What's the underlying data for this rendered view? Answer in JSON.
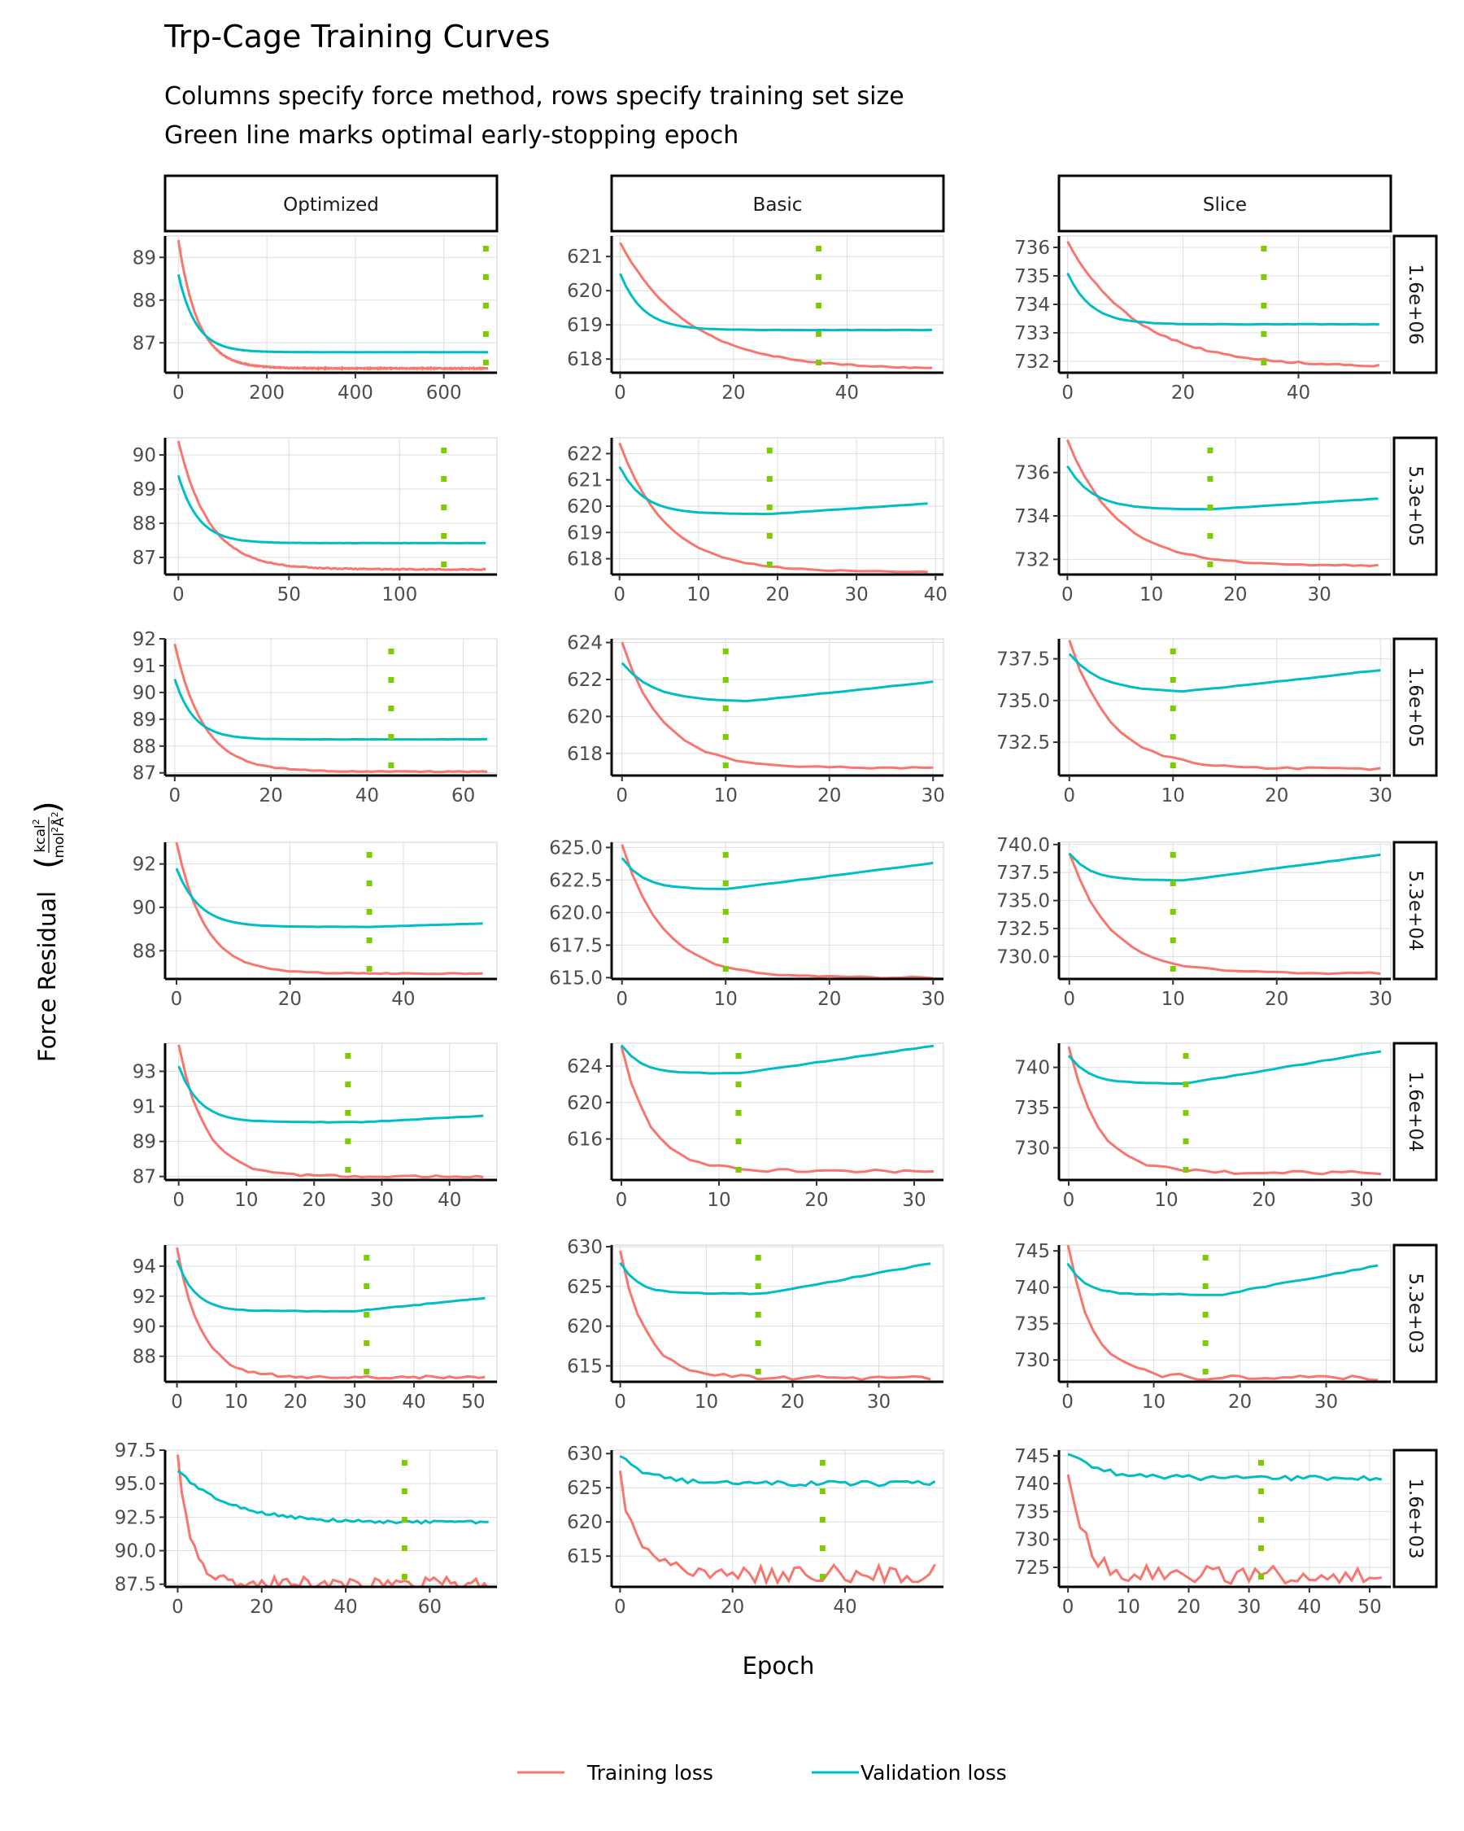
{
  "title": "Trp-Cage Training Curves",
  "subtitle_lines": [
    "Columns specify force method, rows specify training set size",
    "Green line marks optimal early-stopping epoch"
  ],
  "xlabel": "Epoch",
  "ylabel": "Force Residual",
  "ylabel_unit": {
    "num": "kcal",
    "num_sup": "2",
    "den": "mol",
    "den_sup1": "2",
    "den_unit": "Å",
    "den_sup2": "2"
  },
  "legend": {
    "items": [
      {
        "label": "Training loss",
        "color": "#F8766D"
      },
      {
        "label": "Validation loss",
        "color": "#00BFC4"
      }
    ]
  },
  "colors": {
    "train": "#F8766D",
    "val": "#00BFC4",
    "stop": "#7CCD00",
    "grid": "#DEDEDE",
    "strip_bg": "#FFFFFF",
    "strip_border": "#000000"
  },
  "chart_data": {
    "type": "line",
    "facet_columns": [
      "Optimized",
      "Basic",
      "Slice"
    ],
    "facet_rows": [
      "1.6e+06",
      "5.3e+05",
      "1.6e+05",
      "5.3e+04",
      "1.6e+04",
      "5.3e+03",
      "1.6e+03"
    ],
    "series_names": [
      "Training loss",
      "Validation loss"
    ],
    "panels": [
      {
        "row": 0,
        "col": 0,
        "xlim": [
          -30,
          720
        ],
        "xticks": [
          0,
          200,
          400,
          600
        ],
        "ylim": [
          86.3,
          89.5
        ],
        "yticks": [
          87,
          88,
          89
        ],
        "ytick_labels": [
          "87",
          "88",
          "89"
        ],
        "stop_epoch": 695,
        "n_epochs": 700,
        "noise": 0.01,
        "train": {
          "start": 89.4,
          "end": 86.4,
          "tau": 45,
          "slope": 0.0007
        },
        "val": {
          "start": 88.6,
          "end": 86.78,
          "tau": 40,
          "slope": 0.0
        }
      },
      {
        "row": 0,
        "col": 1,
        "xlim": [
          -1.5,
          57
        ],
        "xticks": [
          0,
          20,
          40
        ],
        "ylim": [
          617.6,
          621.6
        ],
        "yticks": [
          618,
          619,
          620,
          621
        ],
        "ytick_labels": [
          "618",
          "619",
          "620",
          "621"
        ],
        "stop_epoch": 35,
        "n_epochs": 55,
        "noise": 0.015,
        "train": {
          "start": 621.4,
          "end": 617.7,
          "tau": 12,
          "slope": 0.03
        },
        "val": {
          "start": 620.5,
          "end": 618.85,
          "tau": 4,
          "slope": 0.0
        }
      },
      {
        "row": 0,
        "col": 2,
        "xlim": [
          -1.5,
          56
        ],
        "xticks": [
          0,
          20,
          40
        ],
        "ylim": [
          731.6,
          736.4
        ],
        "yticks": [
          732,
          733,
          734,
          735,
          736
        ],
        "ytick_labels": [
          "732",
          "733",
          "734",
          "735",
          "736"
        ],
        "stop_epoch": 34,
        "n_epochs": 54,
        "noise": 0.03,
        "train": {
          "start": 736.2,
          "end": 731.8,
          "tau": 12,
          "slope": 0.035
        },
        "val": {
          "start": 735.1,
          "end": 733.3,
          "tau": 4,
          "slope": 0.002
        }
      },
      {
        "row": 1,
        "col": 0,
        "xlim": [
          -6,
          144
        ],
        "xticks": [
          0,
          50,
          100
        ],
        "ylim": [
          86.5,
          90.5
        ],
        "yticks": [
          87,
          88,
          89,
          90
        ],
        "ytick_labels": [
          "87",
          "88",
          "89",
          "90"
        ],
        "stop_epoch": 120,
        "n_epochs": 139,
        "noise": 0.015,
        "train": {
          "start": 90.4,
          "end": 86.65,
          "tau": 14,
          "slope": 0.004
        },
        "val": {
          "start": 89.4,
          "end": 87.42,
          "tau": 9,
          "slope": 0.0
        }
      },
      {
        "row": 1,
        "col": 1,
        "xlim": [
          -1,
          41
        ],
        "xticks": [
          0,
          10,
          20,
          30,
          40
        ],
        "ylim": [
          617.4,
          622.6
        ],
        "yticks": [
          618,
          619,
          620,
          621,
          622
        ],
        "ytick_labels": [
          "618",
          "619",
          "620",
          "621",
          "622"
        ],
        "stop_epoch": 19,
        "n_epochs": 39,
        "noise": 0.02,
        "train": {
          "start": 622.4,
          "end": 617.5,
          "tau": 6,
          "slope": 0.05
        },
        "val": {
          "start": 621.5,
          "end": 619.7,
          "tau": 3,
          "slope": 0.02,
          "min_at": 19
        }
      },
      {
        "row": 1,
        "col": 2,
        "xlim": [
          -1,
          38.5
        ],
        "xticks": [
          0,
          10,
          20,
          30
        ],
        "ylim": [
          731.3,
          737.6
        ],
        "yticks": [
          732,
          734,
          736
        ],
        "ytick_labels": [
          "732",
          "734",
          "736"
        ],
        "stop_epoch": 17,
        "n_epochs": 37,
        "noise": 0.03,
        "train": {
          "start": 737.5,
          "end": 731.7,
          "tau": 6,
          "slope": 0.07
        },
        "val": {
          "start": 736.3,
          "end": 734.3,
          "tau": 3,
          "slope": 0.025,
          "min_at": 17
        }
      },
      {
        "row": 2,
        "col": 0,
        "xlim": [
          -2,
          67
        ],
        "xticks": [
          0,
          20,
          40,
          60
        ],
        "ylim": [
          86.9,
          92.0
        ],
        "yticks": [
          87,
          88,
          89,
          90,
          91,
          92
        ],
        "ytick_labels": [
          "87",
          "88",
          "89",
          "90",
          "91",
          "92"
        ],
        "stop_epoch": 45,
        "n_epochs": 65,
        "noise": 0.02,
        "train": {
          "start": 91.8,
          "end": 87.05,
          "tau": 6,
          "slope": 0.012
        },
        "val": {
          "start": 90.5,
          "end": 88.25,
          "tau": 4,
          "slope": 0.0
        }
      },
      {
        "row": 2,
        "col": 1,
        "xlim": [
          -1,
          31
        ],
        "xticks": [
          0,
          10,
          20,
          30
        ],
        "ylim": [
          616.8,
          624.2
        ],
        "yticks": [
          618,
          620,
          622,
          624
        ],
        "ytick_labels": [
          "618",
          "620",
          "622",
          "624"
        ],
        "stop_epoch": 10,
        "n_epochs": 30,
        "noise": 0.05,
        "train": {
          "start": 624.0,
          "end": 617.2,
          "tau": 4,
          "slope": 0.15
        },
        "val": {
          "start": 622.9,
          "end": 620.8,
          "tau": 3,
          "slope": 0.06,
          "min_at": 12
        }
      },
      {
        "row": 2,
        "col": 2,
        "xlim": [
          -1,
          31
        ],
        "xticks": [
          0,
          10,
          20,
          30
        ],
        "ylim": [
          730.5,
          738.7
        ],
        "yticks": [
          732.5,
          735.0,
          737.5
        ],
        "ytick_labels": [
          "732.5",
          "735.0",
          "737.5"
        ],
        "stop_epoch": 10,
        "n_epochs": 30,
        "noise": 0.06,
        "train": {
          "start": 738.6,
          "end": 730.9,
          "tau": 4,
          "slope": 0.17
        },
        "val": {
          "start": 737.8,
          "end": 735.5,
          "tau": 3,
          "slope": 0.07,
          "min_at": 11
        }
      },
      {
        "row": 3,
        "col": 0,
        "xlim": [
          -2,
          56.5
        ],
        "xticks": [
          0,
          20,
          40
        ],
        "ylim": [
          86.7,
          93.0
        ],
        "yticks": [
          88,
          90,
          92
        ],
        "ytick_labels": [
          "88",
          "90",
          "92"
        ],
        "stop_epoch": 34,
        "n_epochs": 54,
        "noise": 0.02,
        "train": {
          "start": 93.0,
          "end": 86.95,
          "tau": 5,
          "slope": 0.03
        },
        "val": {
          "start": 91.8,
          "end": 89.1,
          "tau": 4,
          "slope": 0.008,
          "min_at": 34
        }
      },
      {
        "row": 3,
        "col": 1,
        "xlim": [
          -1,
          31
        ],
        "xticks": [
          0,
          10,
          20,
          30
        ],
        "ylim": [
          614.9,
          625.4
        ],
        "yticks": [
          615,
          617.5,
          620,
          622.5,
          625
        ],
        "ytick_labels": [
          "615.0",
          "617.5",
          "620.0",
          "622.5",
          "625.0"
        ],
        "stop_epoch": 10,
        "n_epochs": 30,
        "noise": 0.06,
        "train": {
          "start": 625.2,
          "end": 615.0,
          "tau": 4,
          "slope": 0.25
        },
        "val": {
          "start": 624.2,
          "end": 621.8,
          "tau": 2,
          "slope": 0.1,
          "min_at": 10
        }
      },
      {
        "row": 3,
        "col": 2,
        "xlim": [
          -1,
          31
        ],
        "xticks": [
          0,
          10,
          20,
          30
        ],
        "ylim": [
          728.0,
          740.2
        ],
        "yticks": [
          730,
          732.5,
          735,
          737.5,
          740
        ],
        "ytick_labels": [
          "730.0",
          "732.5",
          "735.0",
          "737.5",
          "740.0"
        ],
        "stop_epoch": 10,
        "n_epochs": 30,
        "noise": 0.08,
        "train": {
          "start": 739.2,
          "end": 728.5,
          "tau": 4,
          "slope": 0.28
        },
        "val": {
          "start": 739.2,
          "end": 736.8,
          "tau": 2,
          "slope": 0.12,
          "min_at": 11
        }
      },
      {
        "row": 4,
        "col": 0,
        "xlim": [
          -2,
          47
        ],
        "xticks": [
          0,
          10,
          20,
          30,
          40
        ],
        "ylim": [
          86.8,
          94.6
        ],
        "yticks": [
          87,
          89,
          91,
          93
        ],
        "ytick_labels": [
          "87",
          "89",
          "91",
          "93"
        ],
        "stop_epoch": 25,
        "n_epochs": 45,
        "noise": 0.06,
        "train": {
          "start": 94.5,
          "end": 87.0,
          "tau": 4,
          "slope": 0.08
        },
        "val": {
          "start": 93.3,
          "end": 90.1,
          "tau": 3,
          "slope": 0.02,
          "min_at": 27
        }
      },
      {
        "row": 4,
        "col": 1,
        "xlim": [
          -1,
          33
        ],
        "xticks": [
          0,
          10,
          20,
          30
        ],
        "ylim": [
          611.5,
          626.5
        ],
        "yticks": [
          616,
          620,
          624
        ],
        "ytick_labels": [
          "616",
          "620",
          "624"
        ],
        "stop_epoch": 12,
        "n_epochs": 32,
        "noise": 0.18,
        "train": {
          "start": 626.1,
          "end": 612.5,
          "tau": 3,
          "slope": 0.32
        },
        "val": {
          "start": 626.3,
          "end": 623.2,
          "tau": 2,
          "slope": 0.15,
          "min_at": 12
        }
      },
      {
        "row": 4,
        "col": 2,
        "xlim": [
          -1,
          33
        ],
        "xticks": [
          0,
          10,
          20,
          30
        ],
        "ylim": [
          726.0,
          743.0
        ],
        "yticks": [
          730,
          735,
          740
        ],
        "ytick_labels": [
          "730",
          "735",
          "740"
        ],
        "stop_epoch": 12,
        "n_epochs": 32,
        "noise": 0.2,
        "train": {
          "start": 742.5,
          "end": 726.9,
          "tau": 3,
          "slope": 0.35
        },
        "val": {
          "start": 741.5,
          "end": 738.0,
          "tau": 2,
          "slope": 0.2,
          "min_at": 12
        }
      },
      {
        "row": 5,
        "col": 0,
        "xlim": [
          -2,
          54
        ],
        "xticks": [
          0,
          10,
          20,
          30,
          40,
          50
        ],
        "ylim": [
          86.3,
          95.4
        ],
        "yticks": [
          88,
          90,
          92,
          94
        ],
        "ytick_labels": [
          "88",
          "90",
          "92",
          "94"
        ],
        "stop_epoch": 32,
        "n_epochs": 52,
        "noise": 0.1,
        "train": {
          "start": 95.2,
          "end": 86.6,
          "tau": 4,
          "slope": 0.1
        },
        "val": {
          "start": 94.4,
          "end": 91.0,
          "tau": 3,
          "slope": 0.04,
          "min_at": 30
        }
      },
      {
        "row": 5,
        "col": 1,
        "xlim": [
          -1,
          37.5
        ],
        "xticks": [
          0,
          10,
          20,
          30
        ],
        "ylim": [
          613.0,
          630.2
        ],
        "yticks": [
          615,
          620,
          625,
          630
        ],
        "ytick_labels": [
          "615",
          "620",
          "625",
          "630"
        ],
        "stop_epoch": 16,
        "n_epochs": 36,
        "noise": 0.25,
        "train": {
          "start": 629.4,
          "end": 613.5,
          "tau": 3,
          "slope": 0.3
        },
        "val": {
          "start": 628.0,
          "end": 624.1,
          "tau": 2,
          "slope": 0.2,
          "min_at": 17
        }
      },
      {
        "row": 5,
        "col": 2,
        "xlim": [
          -1,
          37.5
        ],
        "xticks": [
          0,
          10,
          20,
          30
        ],
        "ylim": [
          727.0,
          745.8
        ],
        "yticks": [
          730,
          735,
          740,
          745
        ],
        "ytick_labels": [
          "730",
          "735",
          "740",
          "745"
        ],
        "stop_epoch": 16,
        "n_epochs": 36,
        "noise": 0.35,
        "train": {
          "start": 745.9,
          "end": 727.5,
          "tau": 3,
          "slope": 0.38
        },
        "val": {
          "start": 743.3,
          "end": 739.0,
          "tau": 2,
          "slope": 0.22,
          "min_at": 18
        }
      },
      {
        "row": 6,
        "col": 0,
        "xlim": [
          -3,
          76
        ],
        "xticks": [
          0,
          20,
          40,
          60
        ],
        "ylim": [
          87.3,
          97.5
        ],
        "yticks": [
          87.5,
          90.0,
          92.5,
          95.0,
          97.5
        ],
        "ytick_labels": [
          "87.5",
          "90.0",
          "92.5",
          "95.0",
          "97.5"
        ],
        "stop_epoch": 54,
        "n_epochs": 74,
        "noise": 0.45,
        "train": {
          "start": 97.0,
          "end": 87.6,
          "tau": 3,
          "slope": 0.1
        },
        "val": {
          "start": 96.0,
          "end": 92.1,
          "tau": 12,
          "slope": 0.0,
          "min_at": 55
        }
      },
      {
        "row": 6,
        "col": 1,
        "xlim": [
          -1.5,
          57.5
        ],
        "xticks": [
          0,
          20,
          40
        ],
        "ylim": [
          610.5,
          630.5
        ],
        "yticks": [
          615,
          620,
          625,
          630
        ],
        "ytick_labels": [
          "615",
          "620",
          "625",
          "630"
        ],
        "stop_epoch": 36,
        "n_epochs": 56,
        "noise": 1.4,
        "train": {
          "start": 627.0,
          "end": 612.5,
          "tau": 3,
          "slope": 0.2
        },
        "val": {
          "start": 629.8,
          "end": 625.6,
          "tau": 5,
          "slope": 0.0,
          "min_at": 36
        }
      },
      {
        "row": 6,
        "col": 2,
        "xlim": [
          -1.5,
          53.5
        ],
        "xticks": [
          0,
          10,
          20,
          30,
          40,
          50
        ],
        "ylim": [
          721.5,
          746.0
        ],
        "yticks": [
          725,
          730,
          735,
          740,
          745
        ],
        "ytick_labels": [
          "725",
          "730",
          "735",
          "740",
          "745"
        ],
        "stop_epoch": 32,
        "n_epochs": 52,
        "noise": 1.7,
        "train": {
          "start": 741.0,
          "end": 723.5,
          "tau": 3,
          "slope": 0.3
        },
        "val": {
          "start": 745.5,
          "end": 741.0,
          "tau": 5,
          "slope": 0.0,
          "min_at": 32
        }
      }
    ]
  }
}
